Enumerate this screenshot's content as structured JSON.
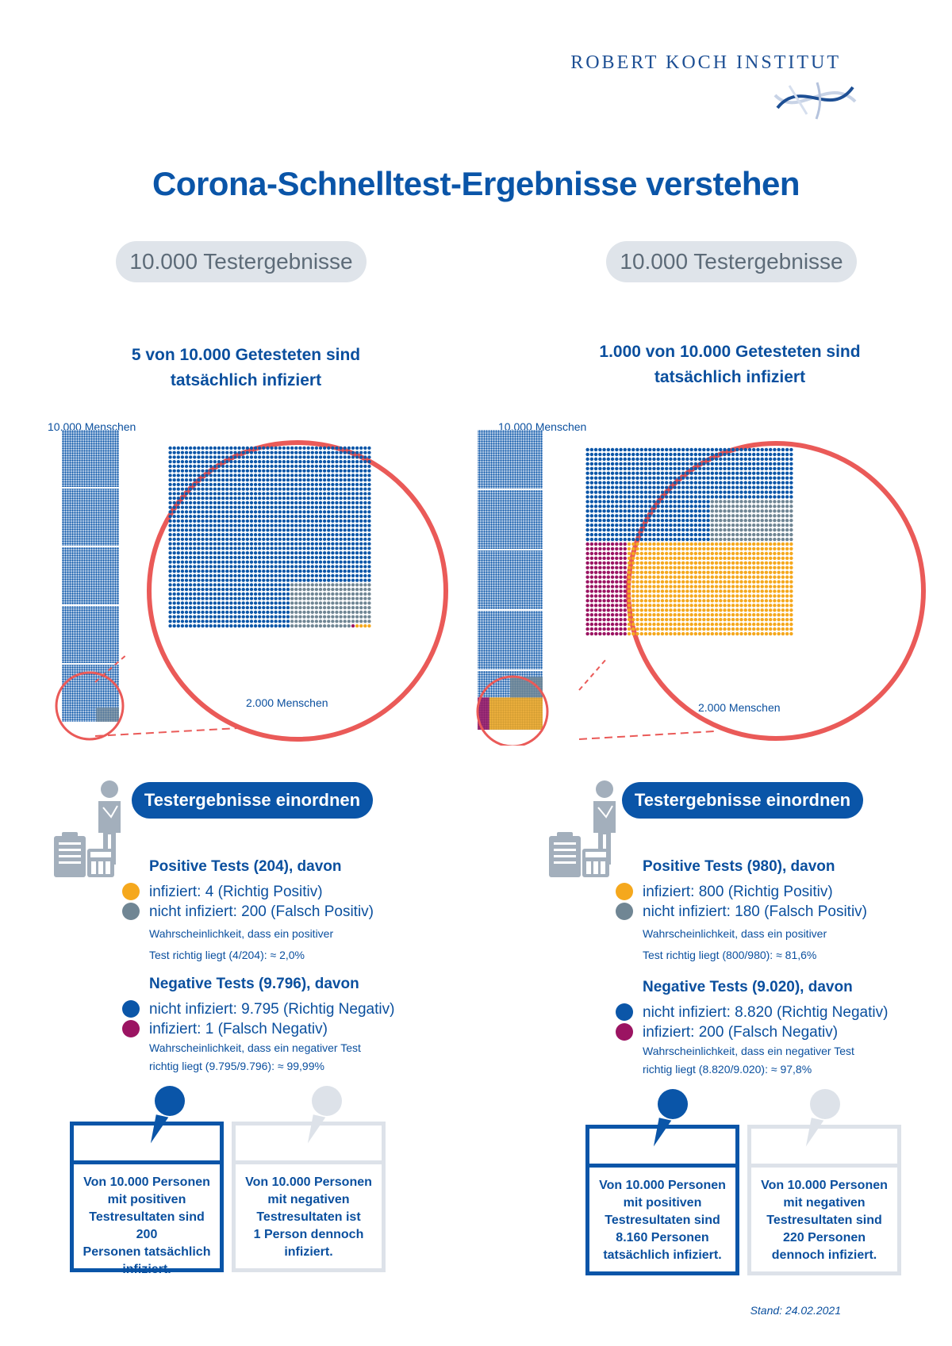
{
  "header": {
    "brand": "ROBERT KOCH INSTITUT",
    "title": "Corona-Schnelltest-Ergebnisse verstehen"
  },
  "colors": {
    "blue": "#0b56a8",
    "grey": "#708694",
    "orange": "#f5a81d",
    "magenta": "#9b1462",
    "red_ring": "#ea5a58",
    "light_box": "#dde2e9"
  },
  "panels": [
    {
      "pill": "10.000 Testergebnisse",
      "subhead_line1": "5 von 10.000 Getesteten sind",
      "subhead_line2": "tatsächlich infiziert",
      "column_label": "10.000 Menschen",
      "zoom_label": "2.000 Menschen",
      "zoom_counts": {
        "total": 2000,
        "true_negative": 1795,
        "false_positive": 200,
        "false_negative": 1,
        "true_positive": 4
      },
      "button": "Testergebnisse einordnen",
      "positive_heading": "Positive Tests (204), davon",
      "positive_items": [
        {
          "icon": "orange-dot-icon",
          "text": "infiziert: 4 (Richtig Positiv)"
        },
        {
          "icon": "grey-dot-icon",
          "text": "nicht infiziert: 200 (Falsch Positiv)"
        }
      ],
      "positive_note_1": "Wahrscheinlichkeit, dass ein positiver",
      "positive_note_2": "Test richtig liegt (4/204): ≈ 2,0%",
      "negative_heading": "Negative Tests (9.796), davon",
      "negative_items": [
        {
          "icon": "blue-dot-icon",
          "text": "nicht infiziert: 9.795 (Richtig Negativ)"
        },
        {
          "icon": "magenta-dot-icon",
          "text": "infiziert: 1 (Falsch Negativ)"
        }
      ],
      "negative_note_1": "Wahrscheinlichkeit, dass ein negativer Test",
      "negative_note_2": "richtig liegt (9.795/9.796): ≈ 99,99%",
      "box_positive": [
        "Von 10.000 Personen",
        "mit positiven",
        "Testresultaten sind 200",
        "Personen tatsächlich",
        "infiziert."
      ],
      "box_negative": [
        "Von 10.000 Personen",
        "mit negativen",
        "Testresultaten ist",
        "1 Person dennoch",
        "infiziert."
      ]
    },
    {
      "pill": "10.000 Testergebnisse",
      "subhead_line1": "1.000 von 10.000 Getesteten sind",
      "subhead_line2": "tatsächlich infiziert",
      "column_label": "10.000 Menschen",
      "zoom_label": "2.000 Menschen",
      "zoom_counts": {
        "total": 2000,
        "true_negative": 820,
        "false_positive": 180,
        "false_negative": 200,
        "true_positive": 800
      },
      "button": "Testergebnisse einordnen",
      "positive_heading": "Positive Tests (980), davon",
      "positive_items": [
        {
          "icon": "orange-dot-icon",
          "text": "infiziert: 800 (Richtig Positiv)"
        },
        {
          "icon": "grey-dot-icon",
          "text": "nicht infiziert: 180 (Falsch Positiv)"
        }
      ],
      "positive_note_1": "Wahrscheinlichkeit, dass ein positiver",
      "positive_note_2": "Test richtig liegt (800/980): ≈ 81,6%",
      "negative_heading": "Negative Tests (9.020), davon",
      "negative_items": [
        {
          "icon": "blue-dot-icon",
          "text": "nicht infiziert: 8.820 (Richtig Negativ)"
        },
        {
          "icon": "magenta-dot-icon",
          "text": "infiziert: 200 (Falsch Negativ)"
        }
      ],
      "negative_note_1": "Wahrscheinlichkeit, dass ein negativer Test",
      "negative_note_2": "richtig liegt (8.820/9.020): ≈ 97,8%",
      "box_positive": [
        "Von 10.000 Personen",
        "mit positiven",
        "Testresultaten sind",
        "8.160 Personen",
        "tatsächlich infiziert."
      ],
      "box_negative": [
        "Von 10.000 Personen",
        "mit negativen",
        "Testresultaten sind",
        "220 Personen",
        "dennoch infiziert."
      ]
    }
  ],
  "footer": {
    "stand": "Stand: 24.02.2021"
  }
}
